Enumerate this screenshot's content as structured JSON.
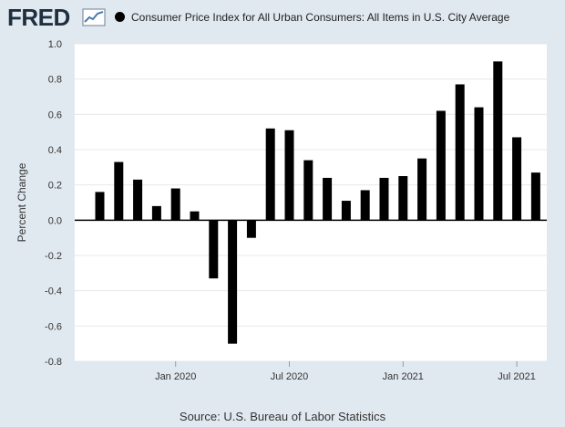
{
  "header": {
    "logo_text": "FRED",
    "legend_label": "Consumer Price Index for All Urban Consumers: All Items in U.S. City Average"
  },
  "source": "Source: U.S. Bureau of Labor Statistics",
  "chart_data": {
    "type": "bar",
    "categories": [
      "2019-09",
      "2019-10",
      "2019-11",
      "2019-12",
      "2020-01",
      "2020-02",
      "2020-03",
      "2020-04",
      "2020-05",
      "2020-06",
      "2020-07",
      "2020-08",
      "2020-09",
      "2020-10",
      "2020-11",
      "2020-12",
      "2021-01",
      "2021-02",
      "2021-03",
      "2021-04",
      "2021-05",
      "2021-06",
      "2021-07",
      "2021-08"
    ],
    "series": [
      {
        "name": "Consumer Price Index for All Urban Consumers: All Items in U.S. City Average",
        "values": [
          0.16,
          0.33,
          0.23,
          0.08,
          0.18,
          0.05,
          -0.33,
          -0.7,
          -0.1,
          0.52,
          0.51,
          0.34,
          0.24,
          0.11,
          0.17,
          0.24,
          0.25,
          0.35,
          0.62,
          0.77,
          0.64,
          0.9,
          0.47,
          0.27
        ],
        "color": "#000000"
      }
    ],
    "ylabel": "Percent Change",
    "xlabel": "",
    "ylim": [
      -0.8,
      1.0
    ],
    "yticks": [
      "1.0",
      "0.8",
      "0.6",
      "0.4",
      "0.2",
      "0.0",
      "-0.2",
      "-0.4",
      "-0.6",
      "-0.8"
    ],
    "xticks": [
      {
        "label": "Jan 2020",
        "at": "2020-01"
      },
      {
        "label": "Jul 2020",
        "at": "2020-07"
      },
      {
        "label": "Jan 2021",
        "at": "2021-01"
      },
      {
        "label": "Jul 2021",
        "at": "2021-07"
      }
    ],
    "grid": true,
    "legend": "top"
  },
  "colors": {
    "background": "#e1e9f0",
    "plot_background": "#ffffff",
    "bar": "#000000"
  }
}
